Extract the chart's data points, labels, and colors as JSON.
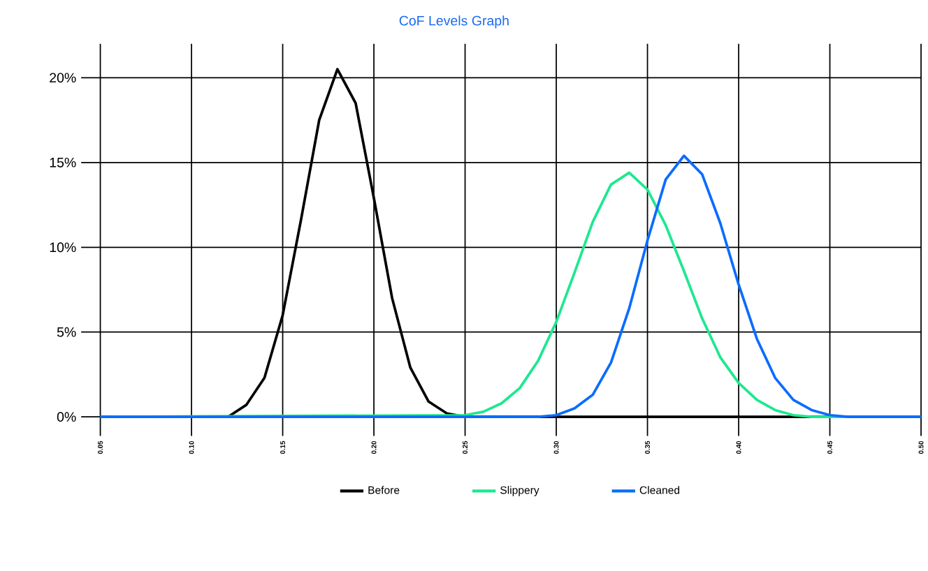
{
  "chart_data": {
    "type": "line",
    "title": "CoF Levels Graph",
    "xlim": [
      0.05,
      0.5
    ],
    "ylim": [
      0,
      22
    ],
    "xticks": [
      {
        "value": 0.05,
        "label": "0.05"
      },
      {
        "value": 0.1,
        "label": "0.10"
      },
      {
        "value": 0.15,
        "label": "0.15"
      },
      {
        "value": 0.2,
        "label": "0.20"
      },
      {
        "value": 0.25,
        "label": "0.25"
      },
      {
        "value": 0.3,
        "label": "0.30"
      },
      {
        "value": 0.35,
        "label": "0.35"
      },
      {
        "value": 0.4,
        "label": "0.40"
      },
      {
        "value": 0.45,
        "label": "0.45"
      },
      {
        "value": 0.5,
        "label": "0.50"
      }
    ],
    "yticks": [
      {
        "value": 0,
        "label": "0%"
      },
      {
        "value": 5,
        "label": "5%"
      },
      {
        "value": 10,
        "label": "10%"
      },
      {
        "value": 15,
        "label": "15%"
      },
      {
        "value": 20,
        "label": "20%"
      }
    ],
    "grid": true,
    "legend": "bottom",
    "series": [
      {
        "name": "Before",
        "color": "#000000",
        "x": [
          0.05,
          0.12,
          0.13,
          0.14,
          0.15,
          0.16,
          0.17,
          0.18,
          0.19,
          0.2,
          0.21,
          0.22,
          0.23,
          0.24,
          0.25,
          0.5
        ],
        "values": [
          0,
          0,
          0.7,
          2.3,
          6.0,
          11.6,
          17.5,
          20.5,
          18.5,
          12.9,
          7.0,
          2.9,
          0.9,
          0.2,
          0,
          0
        ]
      },
      {
        "name": "Slippery",
        "color": "#1de88f",
        "x": [
          0.05,
          0.25,
          0.26,
          0.27,
          0.28,
          0.29,
          0.3,
          0.31,
          0.32,
          0.33,
          0.34,
          0.35,
          0.36,
          0.37,
          0.38,
          0.39,
          0.4,
          0.41,
          0.42,
          0.43,
          0.44,
          0.5
        ],
        "values": [
          0,
          0.1,
          0.3,
          0.8,
          1.7,
          3.3,
          5.6,
          8.5,
          11.5,
          13.7,
          14.4,
          13.4,
          11.3,
          8.6,
          5.8,
          3.5,
          2.0,
          1.0,
          0.4,
          0.1,
          0,
          0
        ]
      },
      {
        "name": "Cleaned",
        "color": "#0a6cff",
        "x": [
          0.05,
          0.29,
          0.3,
          0.31,
          0.32,
          0.33,
          0.34,
          0.35,
          0.36,
          0.37,
          0.38,
          0.39,
          0.4,
          0.41,
          0.42,
          0.43,
          0.44,
          0.45,
          0.46,
          0.5
        ],
        "values": [
          0,
          0,
          0.1,
          0.5,
          1.3,
          3.2,
          6.4,
          10.4,
          14.0,
          15.4,
          14.3,
          11.4,
          7.8,
          4.6,
          2.3,
          1.0,
          0.4,
          0.1,
          0,
          0
        ]
      }
    ]
  }
}
